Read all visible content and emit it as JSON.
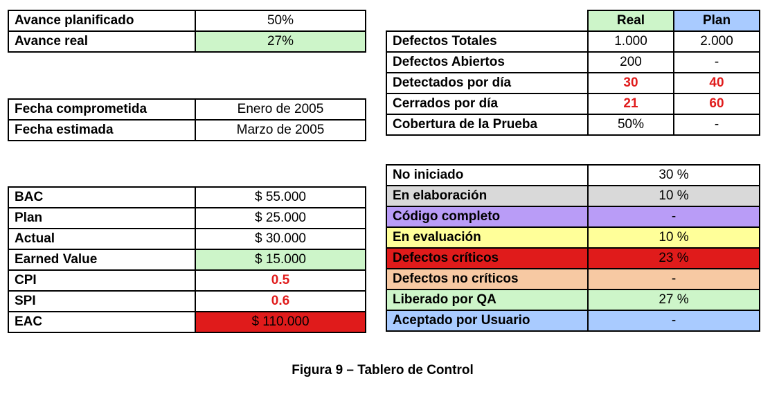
{
  "progress": [
    {
      "label": "Avance planificado",
      "value": "50%"
    },
    {
      "label": "Avance real",
      "value": "27%"
    }
  ],
  "dates": [
    {
      "label": "Fecha comprometida",
      "value": "Enero de 2005"
    },
    {
      "label": "Fecha estimada",
      "value": "Marzo de 2005"
    }
  ],
  "earned_value": [
    {
      "label": "BAC",
      "value": "$ 55.000"
    },
    {
      "label": "Plan",
      "value": "$ 25.000"
    },
    {
      "label": "Actual",
      "value": "$ 30.000"
    },
    {
      "label": "Earned Value",
      "value": "$ 15.000"
    },
    {
      "label": "CPI",
      "value": "0.5"
    },
    {
      "label": "SPI",
      "value": "0.6"
    },
    {
      "label": "EAC",
      "value": "$ 110.000"
    }
  ],
  "defects": {
    "header_real": "Real",
    "header_plan": "Plan",
    "rows": [
      {
        "label": "Defectos Totales",
        "real": "1.000",
        "plan": "2.000"
      },
      {
        "label": "Defectos Abiertos",
        "real": "200",
        "plan": "-"
      },
      {
        "label": "Detectados por día",
        "real": "30",
        "plan": "40"
      },
      {
        "label": "Cerrados por día",
        "real": "21",
        "plan": "60"
      },
      {
        "label": "Cobertura de la Prueba",
        "real": "50%",
        "plan": "-"
      }
    ]
  },
  "status": [
    {
      "label": "No iniciado",
      "value": "30 %"
    },
    {
      "label": "En elaboración",
      "value": "10 %"
    },
    {
      "label": "Código completo",
      "value": "-"
    },
    {
      "label": "En evaluación",
      "value": "10 %"
    },
    {
      "label": "Defectos críticos",
      "value": "23 %"
    },
    {
      "label": "Defectos no críticos",
      "value": "-"
    },
    {
      "label": "Liberado por QA",
      "value": "27 %"
    },
    {
      "label": "Aceptado por Usuario",
      "value": "-"
    }
  ],
  "caption": "Figura 9 – Tablero de Control",
  "colors": {
    "light_green": "#cdf5c9",
    "light_blue": "#a9cbff",
    "gray": "#d9d9d9",
    "purple": "#b99cf7",
    "yellow": "#ffff99",
    "red": "#e01b1b",
    "peach": "#f7c9a3"
  }
}
